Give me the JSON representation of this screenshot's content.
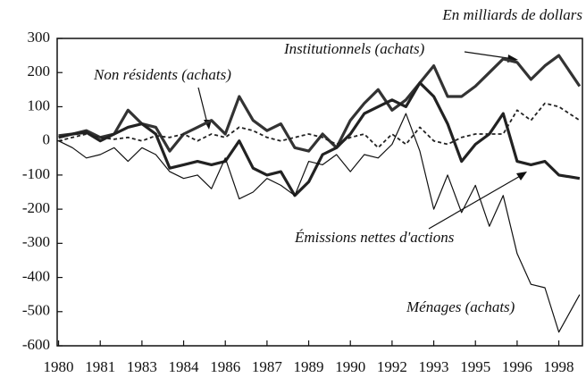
{
  "chart_data": {
    "type": "line",
    "title": "En milliards de dollars",
    "x": [
      1980,
      1980.5,
      1981,
      1981.5,
      1982,
      1982.5,
      1983,
      1983.5,
      1984,
      1984.5,
      1985,
      1985.5,
      1986,
      1986.5,
      1987,
      1987.5,
      1988,
      1988.5,
      1989,
      1989.5,
      1990,
      1990.5,
      1991,
      1991.5,
      1992,
      1992.5,
      1993,
      1993.5,
      1994,
      1994.5,
      1995,
      1995.5,
      1996,
      1996.5,
      1997,
      1997.5,
      1998,
      1998.75
    ],
    "series": [
      {
        "name": "Institutionnels (achats)",
        "color": "#333333",
        "values": [
          15,
          20,
          30,
          10,
          20,
          90,
          50,
          40,
          -30,
          20,
          40,
          60,
          20,
          130,
          60,
          30,
          50,
          -20,
          -30,
          20,
          -20,
          60,
          110,
          150,
          90,
          120,
          170,
          220,
          130,
          130,
          160,
          200,
          240,
          230,
          180,
          220,
          250,
          160
        ]
      },
      {
        "name": "Non résidents (achats)",
        "color": "#222222",
        "values": [
          0,
          10,
          20,
          10,
          5,
          10,
          0,
          15,
          10,
          20,
          0,
          20,
          10,
          40,
          30,
          10,
          0,
          10,
          20,
          10,
          -10,
          10,
          20,
          -20,
          20,
          -10,
          40,
          0,
          -10,
          10,
          20,
          20,
          20,
          90,
          60,
          110,
          100,
          60
        ]
      },
      {
        "name": "Émissions nettes d'actions",
        "color": "#222222",
        "values": [
          10,
          20,
          25,
          0,
          20,
          40,
          50,
          20,
          -80,
          -70,
          -60,
          -70,
          -60,
          0,
          -80,
          -100,
          -90,
          -160,
          -120,
          -40,
          -20,
          20,
          80,
          100,
          120,
          100,
          170,
          130,
          50,
          -60,
          -10,
          20,
          80,
          -60,
          -70,
          -60,
          -100,
          -110
        ]
      },
      {
        "name": "Ménages (achats)",
        "color": "#111111",
        "values": [
          0,
          -20,
          -50,
          -40,
          -20,
          -60,
          -20,
          -40,
          -90,
          -110,
          -100,
          -140,
          -50,
          -170,
          -150,
          -110,
          -130,
          -160,
          -60,
          -70,
          -40,
          -90,
          -40,
          -50,
          -10,
          80,
          -30,
          -200,
          -100,
          -210,
          -130,
          -250,
          -160,
          -330,
          -420,
          -430,
          -560,
          -450
        ]
      }
    ],
    "xlim": [
      1979.95,
      1998.85
    ],
    "xticks": [
      1980,
      {
        "value": 1981.5,
        "label": "1981"
      },
      1983,
      {
        "value": 1984.5,
        "label": "1984"
      },
      1986,
      {
        "value": 1987.5,
        "label": "1987"
      },
      1989,
      {
        "value": 1990.5,
        "label": "1990"
      },
      1992,
      {
        "value": 1993.5,
        "label": "1993"
      },
      1995,
      {
        "value": 1996.5,
        "label": "1996"
      },
      1998
    ],
    "ylim": [
      -600,
      300
    ],
    "yticks": [
      -600,
      -500,
      -400,
      -300,
      -200,
      -100,
      0,
      100,
      200,
      300
    ]
  }
}
